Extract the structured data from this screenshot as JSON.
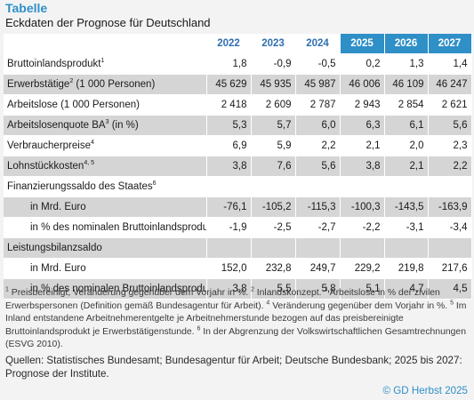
{
  "header": {
    "title": "Tabelle",
    "subtitle": "Eckdaten der Prognose für Deutschland"
  },
  "table": {
    "years": [
      "2022",
      "2023",
      "2024",
      "2025",
      "2026",
      "2027"
    ],
    "rows": [
      {
        "label": "Bruttoinlandsprodukt",
        "sup": "1",
        "indent": false,
        "shade": "white",
        "values": [
          "1,8",
          "-0,9",
          "-0,5",
          "0,2",
          "1,3",
          "1,4"
        ]
      },
      {
        "label": "Erwerbstätige",
        "sup": "2",
        "suffix": " (1 000 Personen)",
        "indent": false,
        "shade": "gray",
        "values": [
          "45 629",
          "45 935",
          "45 987",
          "46 006",
          "46 109",
          "46 247"
        ]
      },
      {
        "label": "Arbeitslose (1 000 Personen)",
        "sup": "",
        "indent": false,
        "shade": "white",
        "values": [
          "2 418",
          "2 609",
          "2 787",
          "2 943",
          "2 854",
          "2 621"
        ]
      },
      {
        "label": "Arbeitslosenquote BA",
        "sup": "3",
        "suffix": " (in %)",
        "indent": false,
        "shade": "gray",
        "values": [
          "5,3",
          "5,7",
          "6,0",
          "6,3",
          "6,1",
          "5,6"
        ]
      },
      {
        "label": "Verbraucherpreise",
        "sup": "4",
        "indent": false,
        "shade": "white",
        "values": [
          "6,9",
          "5,9",
          "2,2",
          "2,1",
          "2,0",
          "2,3"
        ]
      },
      {
        "label": "Lohnstückkosten",
        "sup": "4, 5",
        "indent": false,
        "shade": "gray",
        "values": [
          "3,8",
          "7,6",
          "5,6",
          "3,8",
          "2,1",
          "2,2"
        ]
      },
      {
        "label": "Finanzierungssaldo des Staates",
        "sup": "6",
        "indent": false,
        "shade": "white",
        "values": [
          "",
          "",
          "",
          "",
          "",
          ""
        ]
      },
      {
        "label": "in Mrd. Euro",
        "sup": "",
        "indent": true,
        "shade": "gray",
        "values": [
          "-76,1",
          "-105,2",
          "-115,3",
          "-100,3",
          "-143,5",
          "-163,9"
        ]
      },
      {
        "label": "in % des nominalen Bruttoinlandsprodukts",
        "sup": "",
        "indent": true,
        "shade": "white",
        "values": [
          "-1,9",
          "-2,5",
          "-2,7",
          "-2,2",
          "-3,1",
          "-3,4"
        ]
      },
      {
        "label": "Leistungsbilanzsaldo",
        "sup": "",
        "indent": false,
        "shade": "gray",
        "values": [
          "",
          "",
          "",
          "",
          "",
          ""
        ]
      },
      {
        "label": "in Mrd. Euro",
        "sup": "",
        "indent": true,
        "shade": "white",
        "values": [
          "152,0",
          "232,8",
          "249,7",
          "229,2",
          "219,8",
          "217,6"
        ]
      },
      {
        "label": "in % des nominalen Bruttoinlandsprodukts",
        "sup": "",
        "indent": true,
        "shade": "gray",
        "values": [
          "3,8",
          "5,5",
          "5,8",
          "5,1",
          "4,7",
          "4,5"
        ]
      }
    ]
  },
  "footnotes": [
    {
      "sup": "1",
      "text": " Preisbereinigt, Veränderung gegenüber dem Vorjahr in %. "
    },
    {
      "sup": "2",
      "text": " Inlandskonzept. "
    },
    {
      "sup": "3",
      "text": " Arbeitslose in % der zivilen Erwerbspersonen (Definition gemäß Bundesagentur für Arbeit). "
    },
    {
      "sup": "4",
      "text": " Veränderung gegenüber dem Vorjahr in %. "
    },
    {
      "sup": "5",
      "text": " Im Inland entstandene Arbeitnehmerentgelte je Arbeitnehmerstunde bezogen auf das preisbereinigte Bruttoinlandsprodukt je Erwerbstätigenstunde. "
    },
    {
      "sup": "6",
      "text": " In der Abgrenzung der Volkswirtschaftlichen Gesamtrechnungen (ESVG 2010)."
    }
  ],
  "sources": "Quellen: Statistisches Bundesamt; Bundesagentur für Arbeit; Deutsche Bundesbank; 2025 bis 2027: Prognose der Institute.",
  "copyright": "© GD Herbst 2025",
  "colors": {
    "accent": "#2f8fc7",
    "row_shade": "#d5d5d5",
    "background": "#f3f3f3"
  }
}
